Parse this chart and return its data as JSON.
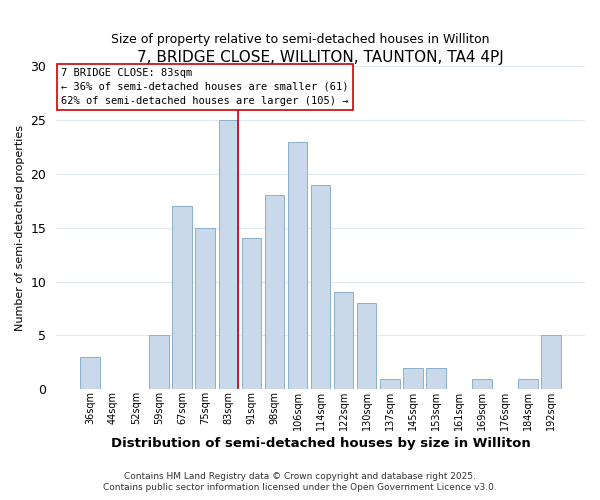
{
  "title": "7, BRIDGE CLOSE, WILLITON, TAUNTON, TA4 4PJ",
  "subtitle": "Size of property relative to semi-detached houses in Williton",
  "xlabel": "Distribution of semi-detached houses by size in Williton",
  "ylabel": "Number of semi-detached properties",
  "categories": [
    "36sqm",
    "44sqm",
    "52sqm",
    "59sqm",
    "67sqm",
    "75sqm",
    "83sqm",
    "91sqm",
    "98sqm",
    "106sqm",
    "114sqm",
    "122sqm",
    "130sqm",
    "137sqm",
    "145sqm",
    "153sqm",
    "161sqm",
    "169sqm",
    "176sqm",
    "184sqm",
    "192sqm"
  ],
  "values": [
    3,
    0,
    0,
    5,
    17,
    15,
    25,
    14,
    18,
    23,
    19,
    9,
    8,
    1,
    2,
    2,
    0,
    1,
    0,
    1,
    5
  ],
  "bar_color": "#c9d9ea",
  "bar_edge_color": "#8ab0cc",
  "highlight_bar_index": 6,
  "highlight_line_color": "#cc0000",
  "ylim": [
    0,
    30
  ],
  "yticks": [
    0,
    5,
    10,
    15,
    20,
    25,
    30
  ],
  "annotation_title": "7 BRIDGE CLOSE: 83sqm",
  "annotation_line1": "← 36% of semi-detached houses are smaller (61)",
  "annotation_line2": "62% of semi-detached houses are larger (105) →",
  "annotation_box_color": "#cc0000",
  "footer_line1": "Contains HM Land Registry data © Crown copyright and database right 2025.",
  "footer_line2": "Contains public sector information licensed under the Open Government Licence v3.0.",
  "bg_color": "#ffffff",
  "grid_color": "#e0e8f0"
}
